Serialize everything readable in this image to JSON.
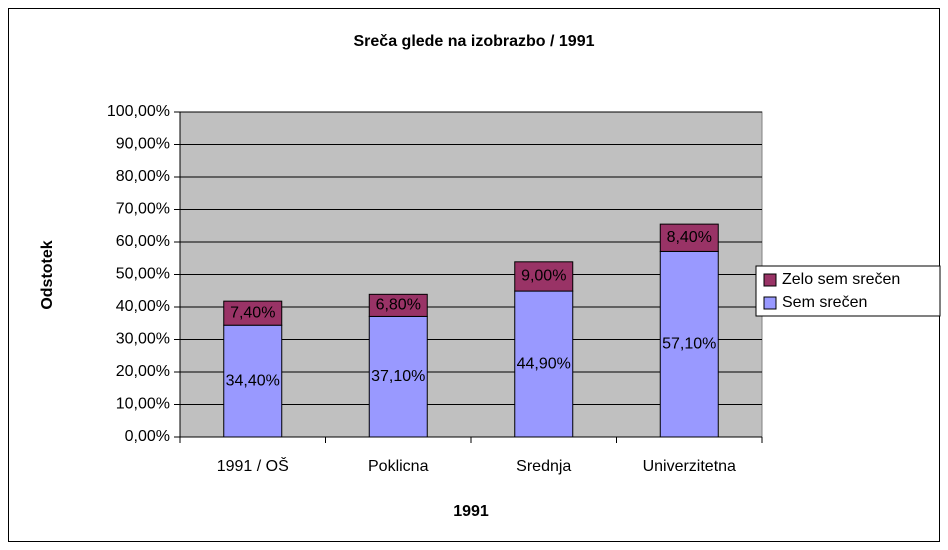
{
  "chart_data": {
    "type": "stacked_bar",
    "title": "Sreča glede na izobrazbo / 1991",
    "x_label": "1991",
    "y_label": "Odstotek",
    "categories": [
      "1991 / OŠ",
      "Poklicna",
      "Srednja",
      "Univerzitetna"
    ],
    "series": [
      {
        "name": "Sem srečen",
        "color": "#9999ff",
        "values": [
          34.4,
          37.1,
          44.9,
          57.1
        ],
        "value_labels": [
          "34,40%",
          "37,10%",
          "44,90%",
          "57,10%"
        ]
      },
      {
        "name": "Zelo sem srečen",
        "color": "#993366",
        "values": [
          7.4,
          6.8,
          9.0,
          8.4
        ],
        "value_labels": [
          "7,40%",
          "6,80%",
          "9,00%",
          "8,40%"
        ]
      }
    ],
    "ylim": [
      0,
      100
    ],
    "yticks": [
      {
        "value": 0,
        "label": "0,00%"
      },
      {
        "value": 10,
        "label": "10,00%"
      },
      {
        "value": 20,
        "label": "20,00%"
      },
      {
        "value": 30,
        "label": "30,00%"
      },
      {
        "value": 40,
        "label": "40,00%"
      },
      {
        "value": 50,
        "label": "50,00%"
      },
      {
        "value": 60,
        "label": "60,00%"
      },
      {
        "value": 70,
        "label": "70,00%"
      },
      {
        "value": 80,
        "label": "80,00%"
      },
      {
        "value": 90,
        "label": "90,00%"
      },
      {
        "value": 100,
        "label": "100,00%"
      }
    ],
    "grid": true,
    "plot_background": "#c0c0c0",
    "legend": "right"
  }
}
